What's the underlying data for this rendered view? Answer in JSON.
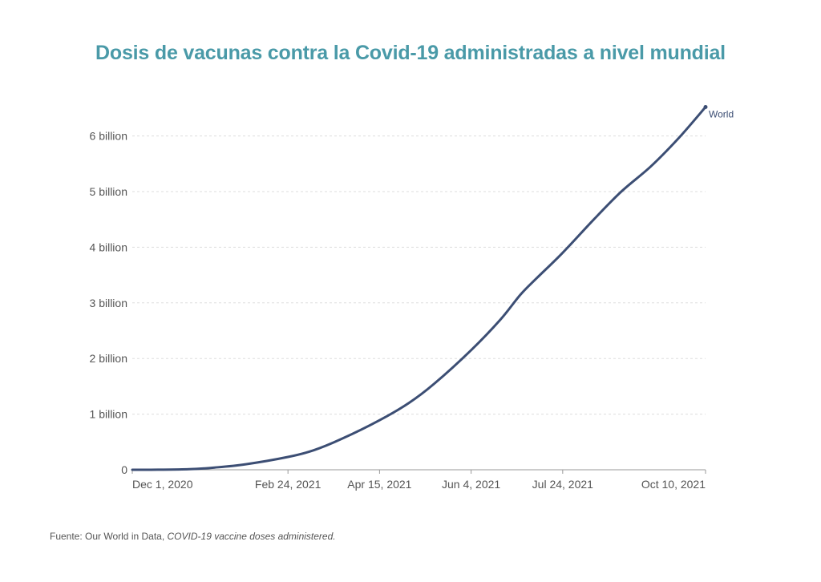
{
  "title": "Dosis de vacunas contra la Covid-19 administradas a nivel mundial",
  "source": {
    "prefix": "Fuente: Our World in Data, ",
    "dataset": "COVID-19 vaccine doses administered."
  },
  "chart_data": {
    "type": "line",
    "title": "Dosis de vacunas contra la Covid-19 administradas a nivel mundial",
    "xlabel": "",
    "ylabel": "",
    "x_tick_labels": [
      "Dec 1, 2020",
      "Feb 24, 2021",
      "Apr 15, 2021",
      "Jun 4, 2021",
      "Jul 24, 2021",
      "Oct 10, 2021"
    ],
    "x_ticks": [
      "2020-12-01",
      "2021-02-24",
      "2021-04-15",
      "2021-06-04",
      "2021-07-24",
      "2021-10-10"
    ],
    "y_tick_labels": [
      "0",
      "1 billion",
      "2 billion",
      "3 billion",
      "4 billion",
      "5 billion",
      "6 billion"
    ],
    "y_ticks": [
      0,
      1000000000,
      2000000000,
      3000000000,
      4000000000,
      5000000000,
      6000000000
    ],
    "xlim": [
      "2020-12-01",
      "2021-10-10"
    ],
    "ylim": [
      0,
      6500000000
    ],
    "grid": "horizontal dashed",
    "series": [
      {
        "name": "World",
        "color": "#3c4e74",
        "points": [
          {
            "x": "2020-12-01",
            "y": 0
          },
          {
            "x": "2020-12-15",
            "y": 1000000
          },
          {
            "x": "2021-01-01",
            "y": 10000000
          },
          {
            "x": "2021-01-15",
            "y": 40000000
          },
          {
            "x": "2021-02-01",
            "y": 100000000
          },
          {
            "x": "2021-02-24",
            "y": 230000000
          },
          {
            "x": "2021-03-10",
            "y": 350000000
          },
          {
            "x": "2021-03-25",
            "y": 550000000
          },
          {
            "x": "2021-04-15",
            "y": 890000000
          },
          {
            "x": "2021-05-01",
            "y": 1200000000
          },
          {
            "x": "2021-05-15",
            "y": 1550000000
          },
          {
            "x": "2021-06-04",
            "y": 2150000000
          },
          {
            "x": "2021-06-20",
            "y": 2700000000
          },
          {
            "x": "2021-07-01",
            "y": 3150000000
          },
          {
            "x": "2021-07-10",
            "y": 3450000000
          },
          {
            "x": "2021-07-24",
            "y": 3900000000
          },
          {
            "x": "2021-08-10",
            "y": 4500000000
          },
          {
            "x": "2021-08-25",
            "y": 5000000000
          },
          {
            "x": "2021-09-10",
            "y": 5450000000
          },
          {
            "x": "2021-09-25",
            "y": 5950000000
          },
          {
            "x": "2021-10-10",
            "y": 6520000000
          }
        ]
      }
    ]
  }
}
